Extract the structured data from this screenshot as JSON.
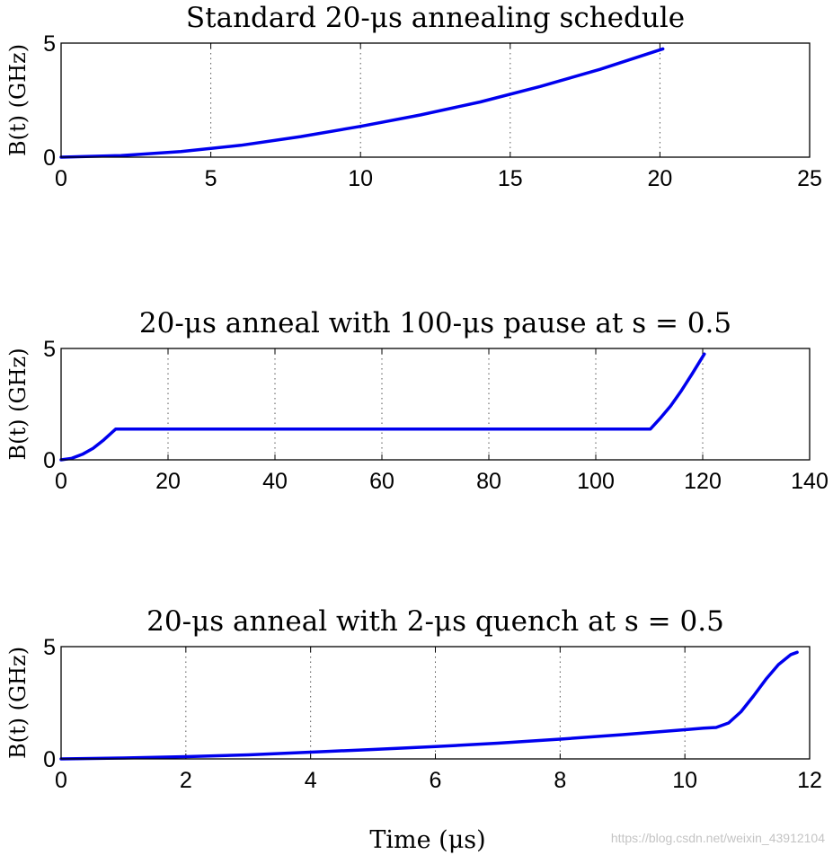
{
  "colors": {
    "series": "#0000ee",
    "axes": "#000000"
  },
  "xlabel": "Time (μs)",
  "watermark": "https://blog.csdn.net/weixin_43912104",
  "chart_data": [
    {
      "type": "line",
      "title": "Standard 20-μs annealing schedule",
      "ylabel": "B(t) (GHz)",
      "xlim": [
        0,
        25
      ],
      "ylim": [
        0,
        5
      ],
      "xticks": [
        "0",
        "5",
        "10",
        "15",
        "20",
        "25"
      ],
      "yticks": [
        "0",
        "5"
      ],
      "grid": "x-dotted",
      "series": [
        {
          "x": [
            0,
            2,
            4,
            6,
            8,
            10,
            12,
            14,
            16,
            18,
            20.1
          ],
          "y": [
            0,
            0.07,
            0.25,
            0.52,
            0.9,
            1.35,
            1.85,
            2.42,
            3.1,
            3.85,
            4.75
          ]
        }
      ]
    },
    {
      "type": "line",
      "title": "20-μs anneal with 100-μs pause at s = 0.5",
      "ylabel": "B(t) (GHz)",
      "xlim": [
        0,
        140
      ],
      "ylim": [
        0,
        5
      ],
      "xticks": [
        "0",
        "20",
        "40",
        "60",
        "80",
        "100",
        "120",
        "140"
      ],
      "yticks": [
        "0",
        "5"
      ],
      "grid": "x-dotted",
      "series": [
        {
          "x": [
            0,
            2,
            4,
            6,
            8,
            10.2,
            110.2,
            112,
            114,
            116,
            118,
            120.3
          ],
          "y": [
            0,
            0.07,
            0.25,
            0.52,
            0.9,
            1.38,
            1.38,
            1.85,
            2.42,
            3.1,
            3.85,
            4.75
          ]
        }
      ]
    },
    {
      "type": "line",
      "title": "20-μs anneal with 2-μs quench at s = 0.5",
      "ylabel": "B(t) (GHz)",
      "xlim": [
        0,
        12
      ],
      "ylim": [
        0,
        5
      ],
      "xticks": [
        "0",
        "2",
        "4",
        "6",
        "8",
        "10",
        "12"
      ],
      "yticks": [
        "0",
        "5"
      ],
      "grid": "x-dotted",
      "series": [
        {
          "x": [
            0,
            1,
            2,
            3,
            4,
            5,
            6,
            7,
            8,
            9,
            10,
            10.3,
            10.5,
            10.7,
            10.9,
            11.1,
            11.3,
            11.5,
            11.7,
            11.8
          ],
          "y": [
            0,
            0.04,
            0.1,
            0.18,
            0.3,
            0.42,
            0.55,
            0.7,
            0.88,
            1.08,
            1.3,
            1.37,
            1.4,
            1.6,
            2.1,
            2.8,
            3.55,
            4.2,
            4.65,
            4.75
          ]
        }
      ]
    }
  ]
}
